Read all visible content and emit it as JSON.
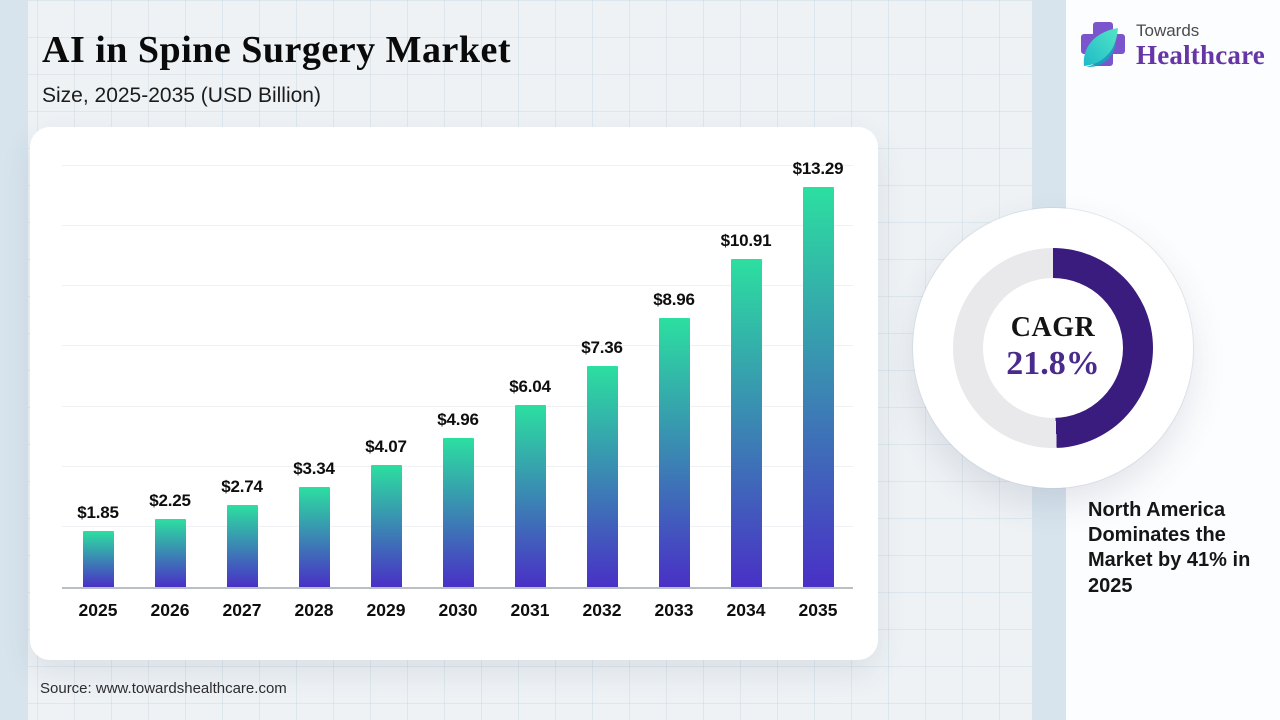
{
  "header": {
    "title": "AI in Spine Surgery Market",
    "subtitle": "Size, 2025-2035 (USD Billion)"
  },
  "logo": {
    "top": "Towards",
    "bottom": "Healthcare"
  },
  "chart_data": {
    "type": "bar",
    "title": "AI in Spine Surgery Market",
    "subtitle": "Size, 2025-2035 (USD Billion)",
    "categories": [
      "2025",
      "2026",
      "2027",
      "2028",
      "2029",
      "2030",
      "2031",
      "2032",
      "2033",
      "2034",
      "2035"
    ],
    "values": [
      1.85,
      2.25,
      2.74,
      3.34,
      4.07,
      4.96,
      6.04,
      7.36,
      8.96,
      10.91,
      13.29
    ],
    "value_labels": [
      "$1.85",
      "$2.25",
      "$2.74",
      "$3.34",
      "$4.07",
      "$4.96",
      "$6.04",
      "$7.36",
      "$8.96",
      "$10.91",
      "$13.29"
    ],
    "ylabel": "USD Billion",
    "ylim": [
      0,
      14
    ],
    "gridline_step": 2,
    "grid": true,
    "legend": false,
    "bar_gradient_top": "#2cdfa0",
    "bar_gradient_bottom": "#4930c6"
  },
  "donut": {
    "label": "CAGR",
    "value": "21.8%",
    "percent": 49.4,
    "arc_color": "#3a1c7e",
    "track_color": "#e9e9ec"
  },
  "callout": {
    "text": "North America Dominates the Market by 41% in 2025"
  },
  "source": {
    "text": "Source: www.towardshealthcare.com"
  },
  "colors": {
    "background": "#eef2f5",
    "accent_stripe": "#d7e4ed",
    "card": "#ffffff",
    "bar_top": "#2cdfa0",
    "bar_bottom": "#4930c6",
    "donut_purple": "#3a1c7e",
    "logo_purple": "#6635a6",
    "logo_cross": "#7a55cc",
    "logo_leaf": "#2fd8c0"
  }
}
